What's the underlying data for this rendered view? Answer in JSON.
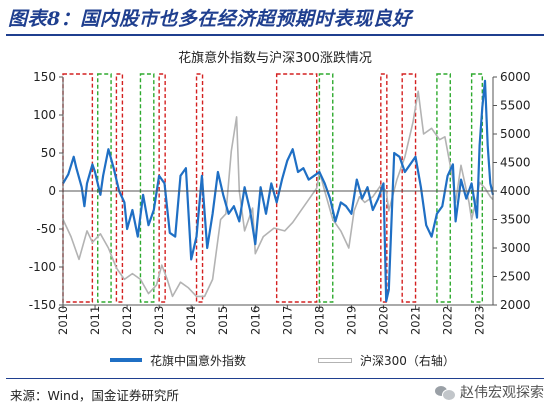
{
  "header": {
    "title": "图表8：国内股市也多在经济超预期时表现良好"
  },
  "source": {
    "text": "来源：Wind，国金证券研究所"
  },
  "watermark": {
    "text": "赵伟宏观探索",
    "icon": "wechat-icon"
  },
  "chart_data": {
    "type": "line",
    "title": "花旗意外指数与沪深300涨跌情况",
    "x_axis": {
      "type": "date",
      "range": [
        "2010-01",
        "2023-06"
      ],
      "tick_labels": [
        "2010",
        "2011",
        "2012",
        "2013",
        "2014",
        "2015",
        "2016",
        "2017",
        "2018",
        "2019",
        "2020",
        "2021",
        "2022",
        "2023"
      ],
      "tick_label_rotation": -90
    },
    "y_axis_left": {
      "range": [
        -150,
        150
      ],
      "ticks": [
        -150,
        -100,
        -50,
        0,
        50,
        100,
        150
      ]
    },
    "y_axis_right": {
      "range": [
        2000,
        6000
      ],
      "ticks": [
        2000,
        2500,
        3000,
        3500,
        4000,
        4500,
        5000,
        5500,
        6000
      ]
    },
    "grid": false,
    "zero_line": true,
    "legend_position": "bottom",
    "series": [
      {
        "name": "花旗中国意外指数",
        "axis": "left",
        "color": "#1f6fc4",
        "points": [
          [
            "2010-01",
            10
          ],
          [
            "2010-03",
            22
          ],
          [
            "2010-05",
            45
          ],
          [
            "2010-06",
            30
          ],
          [
            "2010-08",
            5
          ],
          [
            "2010-09",
            -20
          ],
          [
            "2010-10",
            10
          ],
          [
            "2010-12",
            35
          ],
          [
            "2011-01",
            25
          ],
          [
            "2011-03",
            -5
          ],
          [
            "2011-04",
            20
          ],
          [
            "2011-06",
            55
          ],
          [
            "2011-08",
            30
          ],
          [
            "2011-10",
            0
          ],
          [
            "2011-12",
            -15
          ],
          [
            "2012-01",
            -50
          ],
          [
            "2012-03",
            -25
          ],
          [
            "2012-05",
            -60
          ],
          [
            "2012-07",
            -5
          ],
          [
            "2012-09",
            -45
          ],
          [
            "2012-11",
            -25
          ],
          [
            "2013-01",
            20
          ],
          [
            "2013-03",
            10
          ],
          [
            "2013-05",
            -55
          ],
          [
            "2013-07",
            -60
          ],
          [
            "2013-09",
            20
          ],
          [
            "2013-11",
            30
          ],
          [
            "2014-01",
            -90
          ],
          [
            "2014-03",
            -60
          ],
          [
            "2014-05",
            20
          ],
          [
            "2014-07",
            -75
          ],
          [
            "2014-09",
            -30
          ],
          [
            "2014-11",
            25
          ],
          [
            "2015-01",
            -5
          ],
          [
            "2015-03",
            -30
          ],
          [
            "2015-05",
            -20
          ],
          [
            "2015-07",
            -40
          ],
          [
            "2015-09",
            5
          ],
          [
            "2015-11",
            -25
          ],
          [
            "2016-01",
            -70
          ],
          [
            "2016-03",
            5
          ],
          [
            "2016-05",
            -30
          ],
          [
            "2016-07",
            10
          ],
          [
            "2016-09",
            -15
          ],
          [
            "2016-11",
            15
          ],
          [
            "2017-01",
            40
          ],
          [
            "2017-03",
            55
          ],
          [
            "2017-05",
            25
          ],
          [
            "2017-07",
            30
          ],
          [
            "2017-09",
            15
          ],
          [
            "2017-11",
            20
          ],
          [
            "2018-01",
            25
          ],
          [
            "2018-03",
            10
          ],
          [
            "2018-05",
            -10
          ],
          [
            "2018-07",
            -40
          ],
          [
            "2018-09",
            -15
          ],
          [
            "2018-11",
            -20
          ],
          [
            "2019-01",
            -30
          ],
          [
            "2019-03",
            15
          ],
          [
            "2019-05",
            -10
          ],
          [
            "2019-07",
            5
          ],
          [
            "2019-09",
            -25
          ],
          [
            "2019-11",
            -10
          ],
          [
            "2020-01",
            10
          ],
          [
            "2020-02",
            -145
          ],
          [
            "2020-03",
            -130
          ],
          [
            "2020-05",
            50
          ],
          [
            "2020-07",
            45
          ],
          [
            "2020-09",
            25
          ],
          [
            "2020-11",
            35
          ],
          [
            "2021-01",
            45
          ],
          [
            "2021-03",
            5
          ],
          [
            "2021-05",
            -45
          ],
          [
            "2021-07",
            -60
          ],
          [
            "2021-09",
            -30
          ],
          [
            "2021-11",
            -20
          ],
          [
            "2022-01",
            20
          ],
          [
            "2022-03",
            35
          ],
          [
            "2022-04",
            -40
          ],
          [
            "2022-06",
            15
          ],
          [
            "2022-08",
            -10
          ],
          [
            "2022-10",
            10
          ],
          [
            "2022-12",
            -35
          ],
          [
            "2023-01",
            60
          ],
          [
            "2023-02",
            110
          ],
          [
            "2023-03",
            145
          ],
          [
            "2023-04",
            60
          ],
          [
            "2023-05",
            10
          ],
          [
            "2023-06",
            -5
          ]
        ]
      },
      {
        "name": "沪深300（右轴）",
        "axis": "right",
        "color": "#b3b3b3",
        "points": [
          [
            "2010-01",
            3500
          ],
          [
            "2010-04",
            3200
          ],
          [
            "2010-07",
            2800
          ],
          [
            "2010-10",
            3300
          ],
          [
            "2010-12",
            3100
          ],
          [
            "2011-03",
            3250
          ],
          [
            "2011-06",
            3000
          ],
          [
            "2011-09",
            2650
          ],
          [
            "2011-12",
            2450
          ],
          [
            "2012-03",
            2550
          ],
          [
            "2012-06",
            2450
          ],
          [
            "2012-09",
            2200
          ],
          [
            "2012-12",
            2350
          ],
          [
            "2013-02",
            2700
          ],
          [
            "2013-04",
            2450
          ],
          [
            "2013-06",
            2150
          ],
          [
            "2013-09",
            2400
          ],
          [
            "2013-12",
            2300
          ],
          [
            "2014-03",
            2150
          ],
          [
            "2014-06",
            2150
          ],
          [
            "2014-09",
            2450
          ],
          [
            "2014-12",
            3500
          ],
          [
            "2015-02",
            3600
          ],
          [
            "2015-04",
            4700
          ],
          [
            "2015-06",
            5300
          ],
          [
            "2015-07",
            4000
          ],
          [
            "2015-09",
            3300
          ],
          [
            "2015-12",
            3700
          ],
          [
            "2016-01",
            2900
          ],
          [
            "2016-04",
            3200
          ],
          [
            "2016-08",
            3350
          ],
          [
            "2016-12",
            3300
          ],
          [
            "2017-03",
            3450
          ],
          [
            "2017-06",
            3650
          ],
          [
            "2017-09",
            3850
          ],
          [
            "2017-12",
            4050
          ],
          [
            "2018-01",
            4350
          ],
          [
            "2018-03",
            4000
          ],
          [
            "2018-06",
            3500
          ],
          [
            "2018-09",
            3300
          ],
          [
            "2018-12",
            3000
          ],
          [
            "2019-02",
            3650
          ],
          [
            "2019-04",
            3900
          ],
          [
            "2019-06",
            3800
          ],
          [
            "2019-09",
            3900
          ],
          [
            "2019-12",
            4100
          ],
          [
            "2020-02",
            4000
          ],
          [
            "2020-03",
            3650
          ],
          [
            "2020-06",
            4200
          ],
          [
            "2020-09",
            4600
          ],
          [
            "2020-12",
            5200
          ],
          [
            "2021-02",
            5750
          ],
          [
            "2021-04",
            5000
          ],
          [
            "2021-07",
            5100
          ],
          [
            "2021-10",
            4900
          ],
          [
            "2021-12",
            4950
          ],
          [
            "2022-03",
            4200
          ],
          [
            "2022-04",
            3800
          ],
          [
            "2022-06",
            4450
          ],
          [
            "2022-09",
            3800
          ],
          [
            "2022-10",
            3500
          ],
          [
            "2022-12",
            3900
          ],
          [
            "2023-01",
            4150
          ],
          [
            "2023-03",
            4050
          ],
          [
            "2023-05",
            3900
          ],
          [
            "2023-06",
            3850
          ]
        ]
      }
    ],
    "highlight_periods": [
      {
        "color": "#d42020",
        "start": "2010-01",
        "end": "2010-12"
      },
      {
        "color": "#2eaa2e",
        "start": "2011-02",
        "end": "2011-07"
      },
      {
        "color": "#d42020",
        "start": "2011-09",
        "end": "2011-11"
      },
      {
        "color": "#2eaa2e",
        "start": "2012-06",
        "end": "2012-11"
      },
      {
        "color": "#d42020",
        "start": "2013-01",
        "end": "2013-03"
      },
      {
        "color": "#d42020",
        "start": "2014-03",
        "end": "2014-05"
      },
      {
        "color": "#d42020",
        "start": "2016-09",
        "end": "2017-12"
      },
      {
        "color": "#2eaa2e",
        "start": "2018-01",
        "end": "2018-06"
      },
      {
        "color": "#d42020",
        "start": "2019-12",
        "end": "2020-02"
      },
      {
        "color": "#d42020",
        "start": "2020-08",
        "end": "2021-01"
      },
      {
        "color": "#2eaa2e",
        "start": "2021-09",
        "end": "2022-02"
      },
      {
        "color": "#2eaa2e",
        "start": "2022-10",
        "end": "2023-02"
      }
    ]
  }
}
